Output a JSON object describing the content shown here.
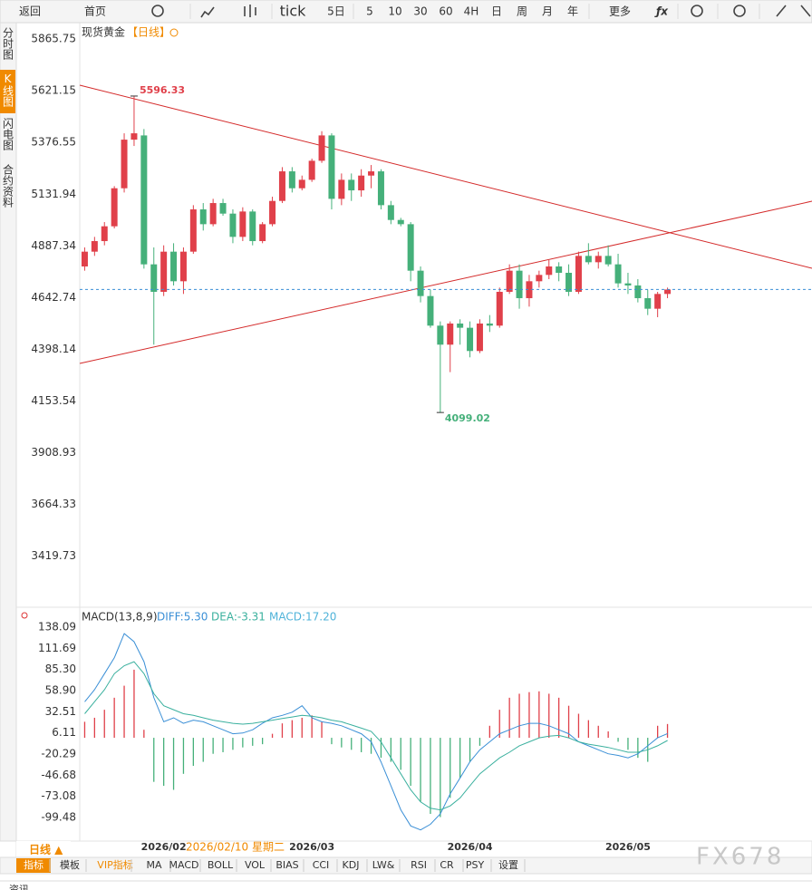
{
  "toolbar": {
    "items": [
      "返回",
      "首页",
      "tick",
      "5日",
      "5",
      "10",
      "30",
      "60",
      "4H",
      "日",
      "周",
      "月",
      "年",
      "更多"
    ]
  },
  "side_tabs": [
    "分时图",
    "K线图",
    "闪电图",
    "合约资料"
  ],
  "chart_data": [
    {
      "type": "candlestick",
      "title": "现货黄金",
      "period": "【日线】",
      "up_color": "#e0404a",
      "down_color": "#45b07a",
      "ylim": [
        3177.7,
        5943.5
      ],
      "yticks": [
        5865.75,
        5621.15,
        5376.55,
        5131.94,
        4887.34,
        4642.74,
        4398.14,
        4153.54,
        3908.93,
        3664.33,
        3419.73
      ],
      "grid": false,
      "categories": [
        null,
        null,
        null,
        null,
        null,
        null,
        null,
        null,
        "2026/02",
        null,
        null,
        null,
        null,
        null,
        null,
        null,
        null,
        null,
        null,
        null,
        null,
        null,
        null,
        "2026/03",
        null,
        null,
        null,
        null,
        null,
        null,
        null,
        null,
        null,
        null,
        null,
        null,
        null,
        null,
        null,
        "2026/04",
        null,
        null,
        null,
        null,
        null,
        null,
        null,
        null,
        null,
        null,
        null,
        null,
        null,
        null,
        null,
        "2026/05",
        null,
        null,
        null,
        null
      ],
      "open": [
        4790,
        4860,
        4910,
        4980,
        5160,
        5390,
        5410,
        4800,
        4670,
        4860,
        4720,
        4860,
        5060,
        4990,
        5090,
        5040,
        4930,
        5050,
        4910,
        4990,
        5100,
        5240,
        5160,
        5200,
        5290,
        5410,
        5110,
        5200,
        5150,
        5220,
        5240,
        5080,
        5010,
        4990,
        4770,
        4650,
        4510,
        4420,
        4520,
        4500,
        4390,
        4520,
        4510,
        4670,
        4770,
        4640,
        4720,
        4750,
        4790,
        4760,
        4670,
        4840,
        4810,
        4840,
        4800,
        4710,
        4700,
        4640,
        4590,
        4660
      ],
      "high": [
        4880,
        4930,
        5000,
        5170,
        5420,
        5596.33,
        5440,
        4880,
        4890,
        4900,
        4880,
        5080,
        5090,
        5110,
        5110,
        5060,
        5070,
        5060,
        5000,
        5120,
        5260,
        5260,
        5220,
        5300,
        5430,
        5420,
        5230,
        5230,
        5250,
        5270,
        5250,
        5100,
        5020,
        5000,
        4790,
        4680,
        4530,
        4530,
        4540,
        4530,
        4540,
        4560,
        4690,
        4800,
        4800,
        4750,
        4770,
        4820,
        4810,
        4800,
        4860,
        4900,
        4860,
        4890,
        4850,
        4760,
        4730,
        4680,
        4670,
        4690
      ],
      "low": [
        4770,
        4840,
        4890,
        4970,
        5140,
        5360,
        4780,
        4420,
        4650,
        4700,
        4660,
        4850,
        4960,
        4980,
        5030,
        4900,
        4910,
        4890,
        4900,
        4980,
        5090,
        5140,
        5150,
        5190,
        5280,
        5060,
        5080,
        5100,
        5120,
        5160,
        5060,
        4990,
        4980,
        4720,
        4620,
        4500,
        4099.02,
        4290,
        4420,
        4360,
        4380,
        4480,
        4500,
        4660,
        4590,
        4600,
        4690,
        4730,
        4720,
        4650,
        4660,
        4800,
        4780,
        4790,
        4690,
        4660,
        4620,
        4560,
        4550,
        4640
      ],
      "close": [
        4860,
        4910,
        4980,
        5160,
        5390,
        5420,
        4800,
        4670,
        4860,
        4720,
        4860,
        5060,
        4990,
        5090,
        5040,
        4930,
        5050,
        4910,
        4990,
        5100,
        5240,
        5160,
        5200,
        5290,
        5410,
        5110,
        5200,
        5150,
        5220,
        5240,
        5080,
        5010,
        4990,
        4770,
        4650,
        4510,
        4420,
        4520,
        4500,
        4390,
        4520,
        4510,
        4670,
        4770,
        4640,
        4720,
        4750,
        4790,
        4760,
        4670,
        4840,
        4810,
        4840,
        4800,
        4710,
        4700,
        4640,
        4590,
        4660,
        4681
      ],
      "crosshair_date": "2026/02/10 星期二"
    },
    {
      "type": "macd",
      "title": "MACD(13,8,9)",
      "diff_label": "DIFF:5.30",
      "dea_label": "DEA:-3.31",
      "macd_label": "MACD:17.20",
      "ylim": [
        -128.9,
        160.7
      ],
      "yticks": [
        138.09,
        111.69,
        {
          "value": 85.3,
          "label": "85.30"
        },
        {
          "value": 58.9,
          "label": "58.90"
        },
        32.51,
        6.11,
        -20.29,
        -46.68,
        -73.08,
        -99.48
      ],
      "series": [
        {
          "name": "MACD",
          "values": [
            20,
            25,
            35,
            50,
            65,
            85,
            10,
            -55,
            -60,
            -65,
            -45,
            -35,
            -30,
            -20,
            -18,
            -15,
            -12,
            -10,
            -8,
            5,
            18,
            22,
            25,
            28,
            20,
            -8,
            -12,
            -15,
            -18,
            -20,
            -25,
            -30,
            -40,
            -60,
            -80,
            -95,
            -99,
            -75,
            -50,
            -30,
            -10,
            15,
            35,
            50,
            55,
            57,
            58,
            55,
            50,
            40,
            30,
            22,
            15,
            8,
            -5,
            -15,
            -25,
            -30,
            15,
            17.2
          ]
        },
        {
          "name": "DIFF",
          "color": "#3a8fd6",
          "values": [
            45,
            60,
            80,
            100,
            130,
            120,
            95,
            50,
            20,
            25,
            18,
            22,
            20,
            15,
            10,
            5,
            6,
            10,
            18,
            25,
            28,
            32,
            40,
            25,
            20,
            18,
            15,
            10,
            5,
            -5,
            -30,
            -60,
            -90,
            -110,
            -115,
            -108,
            -95,
            -70,
            -50,
            -30,
            -15,
            -5,
            5,
            10,
            15,
            18,
            18,
            15,
            10,
            5,
            -5,
            -10,
            -15,
            -20,
            -22,
            -25,
            -20,
            -10,
            0,
            5.3
          ]
        },
        {
          "name": "DEA",
          "color": "#3ab09e",
          "values": [
            30,
            45,
            60,
            80,
            90,
            95,
            80,
            55,
            40,
            35,
            30,
            28,
            25,
            22,
            20,
            18,
            17,
            18,
            20,
            22,
            24,
            26,
            28,
            27,
            25,
            22,
            20,
            16,
            12,
            8,
            -5,
            -25,
            -45,
            -65,
            -80,
            -88,
            -90,
            -85,
            -75,
            -60,
            -45,
            -35,
            -25,
            -18,
            -10,
            -5,
            0,
            2,
            3,
            0,
            -5,
            -8,
            -10,
            -12,
            -15,
            -18,
            -18,
            -15,
            -10,
            -3.31
          ]
        }
      ]
    }
  ],
  "bottom": {
    "period": "日线 ▲",
    "tabs": [
      "指标",
      "模板",
      "VIP指标",
      "MA",
      "MACD",
      "BOLL",
      "VOL",
      "BIAS",
      "CCI",
      "KDJ",
      "LW&",
      "RSI",
      "CR",
      "PSY",
      "设置"
    ],
    "cut_text": "资讯"
  },
  "watermark": "FX678"
}
